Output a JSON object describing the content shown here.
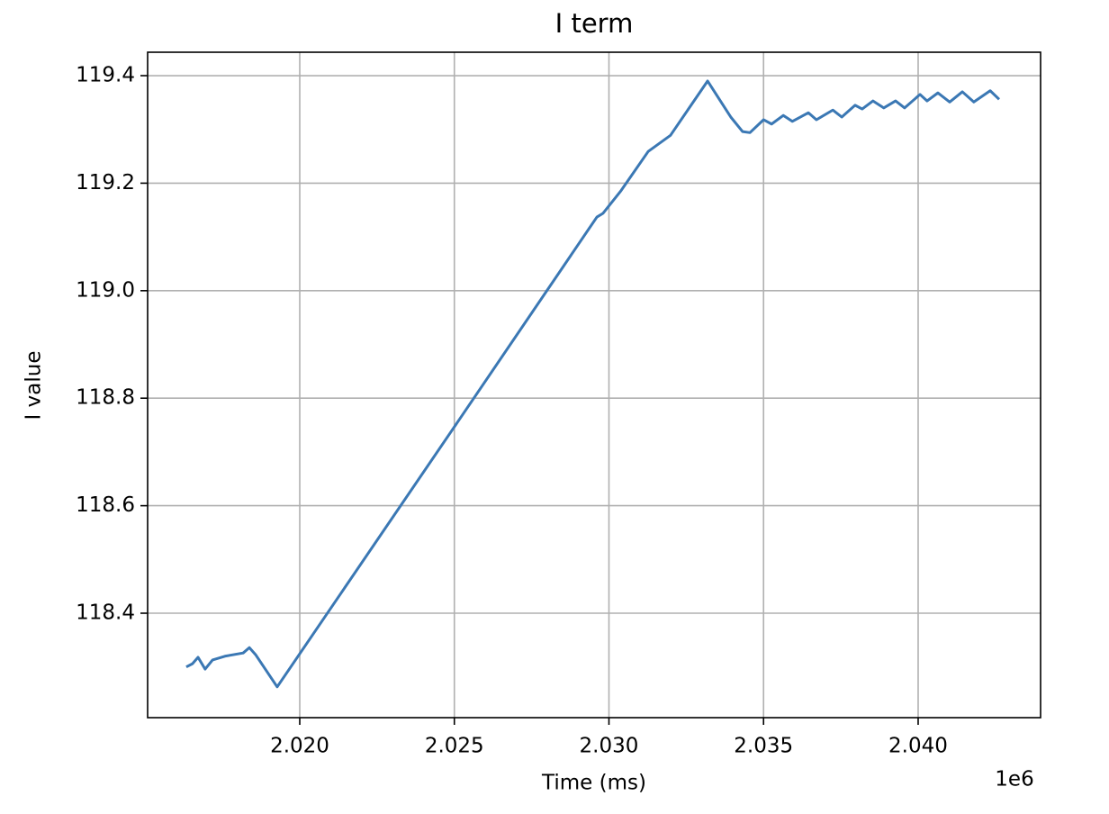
{
  "chart_data": {
    "type": "line",
    "title": "I term",
    "x_label": "Time (ms)",
    "y_label": "I value",
    "x_offset_label": "1e6",
    "x": [
      2.01633,
      2.01653,
      2.01671,
      2.01694,
      2.01718,
      2.01758,
      2.01817,
      2.01837,
      2.01857,
      2.01927,
      2.02498,
      2.02961,
      2.02981,
      2.03039,
      2.03127,
      2.03199,
      2.03319,
      2.03394,
      2.03432,
      2.03456,
      2.035,
      2.03526,
      2.03564,
      2.03593,
      2.03645,
      2.03671,
      2.03724,
      2.03753,
      2.03796,
      2.03819,
      2.03854,
      2.03889,
      2.03927,
      2.03956,
      2.04006,
      2.04029,
      2.04064,
      2.04102,
      2.04143,
      2.0418,
      2.04233,
      2.04262
    ],
    "series": [
      {
        "color": "#3b78b4",
        "values": [
          118.3,
          118.306,
          118.318,
          118.296,
          118.313,
          118.32,
          118.326,
          118.336,
          118.323,
          118.263,
          118.745,
          119.137,
          119.144,
          119.186,
          119.259,
          119.289,
          119.39,
          119.323,
          119.296,
          119.294,
          119.318,
          119.31,
          119.326,
          119.315,
          119.331,
          119.318,
          119.336,
          119.323,
          119.345,
          119.338,
          119.353,
          119.34,
          119.353,
          119.34,
          119.365,
          119.353,
          119.368,
          119.351,
          119.37,
          119.351,
          119.372,
          119.356
        ]
      }
    ],
    "xlim": [
      2.01508,
      2.04396
    ],
    "ylim": [
      118.2057,
      119.4436
    ],
    "xticks": [
      {
        "value": 2.02,
        "label": "2.020"
      },
      {
        "value": 2.025,
        "label": "2.025"
      },
      {
        "value": 2.03,
        "label": "2.030"
      },
      {
        "value": 2.035,
        "label": "2.035"
      },
      {
        "value": 2.04,
        "label": "2.040"
      }
    ],
    "yticks": [
      118.4,
      118.6,
      118.8,
      {
        "value": 119,
        "label": "119.0"
      },
      119.2,
      119.4
    ],
    "grid": true
  }
}
